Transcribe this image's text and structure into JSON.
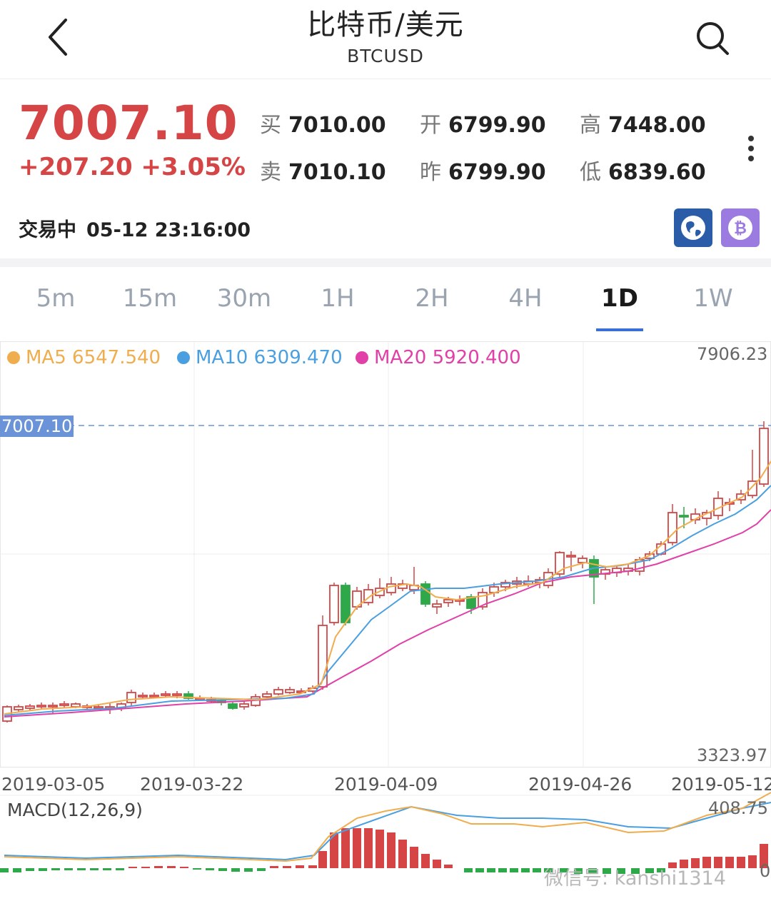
{
  "header": {
    "title": "比特币/美元",
    "subtitle": "BTCUSD"
  },
  "quote": {
    "price": "7007.10",
    "change": "+207.20 +3.05%",
    "bid_label": "买",
    "bid": "7010.00",
    "ask_label": "卖",
    "ask": "7010.10",
    "open_label": "开",
    "open": "6799.90",
    "prev_label": "昨",
    "prev": "6799.90",
    "high_label": "高",
    "high": "7448.00",
    "low_label": "低",
    "low": "6839.60",
    "status": "交易中",
    "timestamp": "05-12 23:16:00",
    "colors": {
      "up": "#d64545",
      "down": "#2fa84a"
    }
  },
  "tabs": [
    "5m",
    "15m",
    "30m",
    "1H",
    "2H",
    "4H",
    "1D",
    "1W"
  ],
  "active_tab": "1D",
  "legend": [
    {
      "name": "MA5",
      "value": "6547.540",
      "color": "#f0ad4e"
    },
    {
      "name": "MA10",
      "value": "6309.470",
      "color": "#4a9fe0"
    },
    {
      "name": "MA20",
      "value": "5920.400",
      "color": "#e040a8"
    }
  ],
  "chart_data": {
    "type": "candlestick",
    "y_max_label": "7906.23",
    "y_min_label": "3323.97",
    "current_price_tag": "7007.10",
    "ylim": [
      3323.97,
      7906.23
    ],
    "x_labels": [
      "2019-03-05",
      "2019-03-22",
      "2019-04-09",
      "2019-04-26",
      "2019-05-12"
    ],
    "macd": {
      "title": "MACD(12,26,9)",
      "max_label": "408.75",
      "zero_label": "0"
    }
  },
  "watermark": "微信号: kanshi1314"
}
